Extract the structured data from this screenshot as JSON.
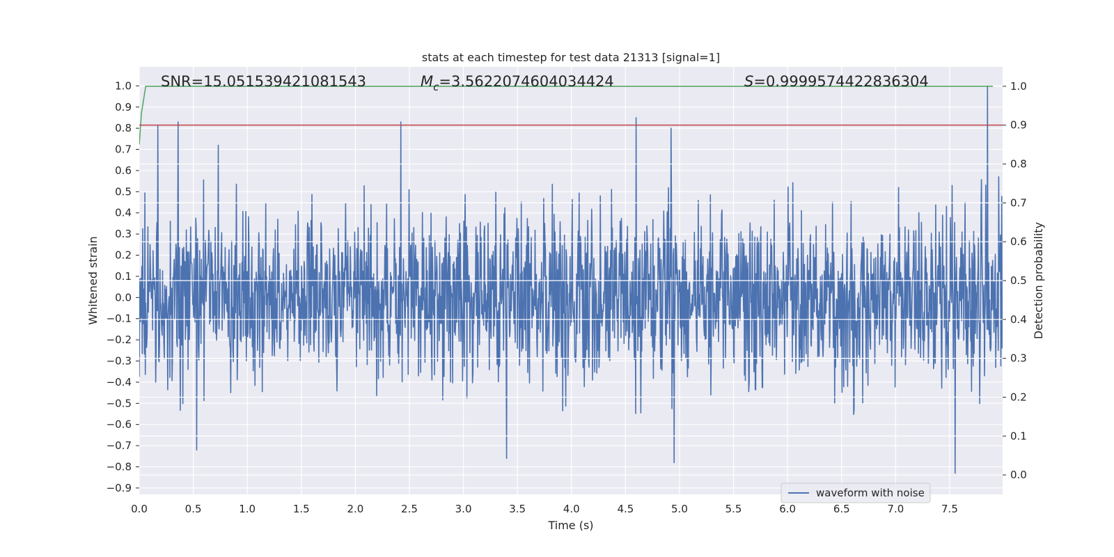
{
  "chart_data": {
    "type": "line",
    "title": "stats at each timestep for test data 21313 [signal=1]",
    "xlabel": "Time (s)",
    "ylabel": "Whitened strain",
    "y2label": "Detection probability",
    "xlim": [
      0.0,
      7.99
    ],
    "ylim": [
      -0.93,
      1.09
    ],
    "y2lim": [
      -0.05,
      1.05
    ],
    "grid": true,
    "x_ticks": [
      "0.0",
      "0.5",
      "1.0",
      "1.5",
      "2.0",
      "2.5",
      "3.0",
      "3.5",
      "4.0",
      "4.5",
      "5.0",
      "5.5",
      "6.0",
      "6.5",
      "7.0",
      "7.5"
    ],
    "y_ticks": [
      "1.0",
      "0.9",
      "0.8",
      "0.7",
      "0.6",
      "0.5",
      "0.4",
      "0.3",
      "0.2",
      "0.1",
      "0.0",
      "−0.1",
      "−0.2",
      "−0.3",
      "−0.4",
      "−0.5",
      "−0.6",
      "−0.7",
      "−0.8",
      "−0.9"
    ],
    "y2_ticks": [
      "1.0",
      "0.9",
      "0.8",
      "0.7",
      "0.6",
      "0.5",
      "0.4",
      "0.3",
      "0.2",
      "0.1",
      "0.0"
    ],
    "annotations": {
      "snr": "SNR=15.051539421081543",
      "mc_symbol": "M",
      "mc_sub": "c",
      "mc_value": "=3.5622074604034424",
      "s_symbol": "S",
      "s_value": "=0.9999574422836304"
    },
    "legend": {
      "entries": [
        "waveform with noise"
      ],
      "placement": "lower-right"
    },
    "series": [
      {
        "name": "waveform with noise",
        "axis": "left",
        "color": "#4c72b0",
        "sampling": "dense noise, approx. 2000 samples",
        "envelope": {
          "typical_amplitude": 0.35,
          "max": 1.0,
          "min": -0.83
        },
        "peaks": [
          [
            0.17,
            0.81
          ],
          [
            0.36,
            0.83
          ],
          [
            0.73,
            0.72
          ],
          [
            2.42,
            0.83
          ],
          [
            4.6,
            0.85
          ],
          [
            4.92,
            0.8
          ],
          [
            7.85,
            1.0
          ],
          [
            7.55,
            -0.83
          ],
          [
            3.4,
            -0.76
          ],
          [
            4.95,
            -0.78
          ],
          [
            0.53,
            -0.72
          ]
        ]
      },
      {
        "name": "",
        "axis": "right",
        "color": "#55a868",
        "x": [
          0.0,
          0.02,
          0.06,
          7.9
        ],
        "y": [
          0.85,
          0.93,
          1.0,
          1.0
        ]
      },
      {
        "name": "",
        "axis": "right",
        "color": "#c44e52",
        "x": [
          0.0,
          7.99
        ],
        "y": [
          0.9,
          0.9
        ]
      }
    ]
  },
  "colors": {
    "background": "#eaeaf2",
    "grid": "#ffffff",
    "waveform": "#4c72b0",
    "probability": "#55a868",
    "threshold": "#c44e52"
  }
}
